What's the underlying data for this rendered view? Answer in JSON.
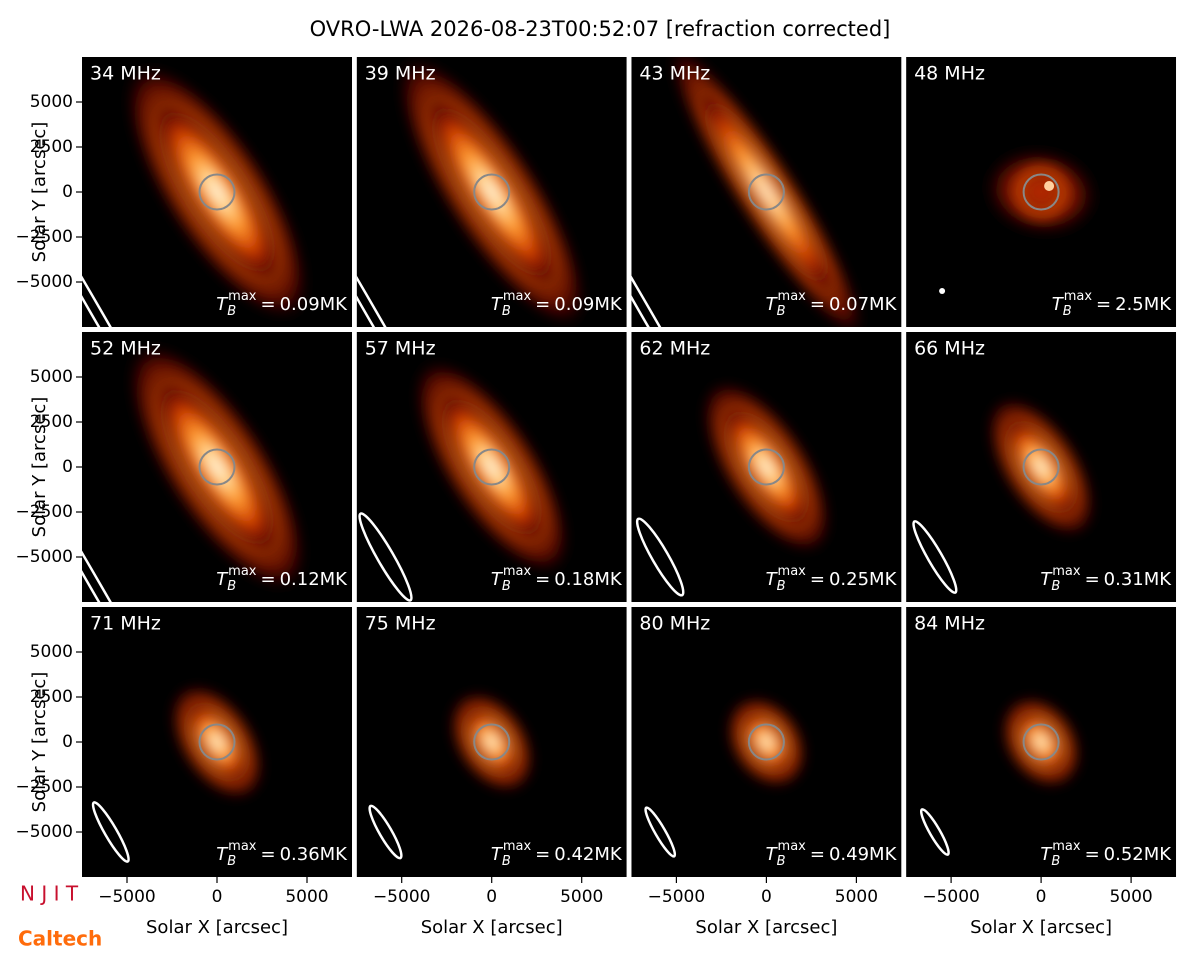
{
  "chart_data": {
    "type": "image-grid",
    "title": "OVRO-LWA 2026-08-23T00:52:07 [refraction corrected]",
    "x_label": "Solar X [arcsec]",
    "y_label": "Solar Y [arcsec]",
    "xlim": [
      -7500,
      7500
    ],
    "ylim": [
      -7500,
      7500
    ],
    "xticks": [
      {
        "value": -5000,
        "label": "−5000"
      },
      0,
      5000
    ],
    "yticks": [
      {
        "value": -5000,
        "label": "−5000"
      },
      {
        "value": -2500,
        "label": "−2500"
      },
      0,
      2500,
      5000
    ],
    "tb_symbol": "T",
    "tb_sub": "B",
    "tb_sup": "max",
    "tb_equals": "=",
    "panels": [
      {
        "label": "34 MHz",
        "tb_max": 0.09,
        "tb_max_label": "0.09MK"
      },
      {
        "label": "39 MHz",
        "tb_max": 0.09,
        "tb_max_label": "0.09MK"
      },
      {
        "label": "43 MHz",
        "tb_max": 0.07,
        "tb_max_label": "0.07MK"
      },
      {
        "label": "48 MHz",
        "tb_max": 2.5,
        "tb_max_label": "2.5MK"
      },
      {
        "label": "52 MHz",
        "tb_max": 0.12,
        "tb_max_label": "0.12MK"
      },
      {
        "label": "57 MHz",
        "tb_max": 0.18,
        "tb_max_label": "0.18MK"
      },
      {
        "label": "62 MHz",
        "tb_max": 0.25,
        "tb_max_label": "0.25MK"
      },
      {
        "label": "66 MHz",
        "tb_max": 0.31,
        "tb_max_label": "0.31MK"
      },
      {
        "label": "71 MHz",
        "tb_max": 0.36,
        "tb_max_label": "0.36MK"
      },
      {
        "label": "75 MHz",
        "tb_max": 0.42,
        "tb_max_label": "0.42MK"
      },
      {
        "label": "80 MHz",
        "tb_max": 0.49,
        "tb_max_label": "0.49MK"
      },
      {
        "label": "84 MHz",
        "tb_max": 0.52,
        "tb_max_label": "0.52MK"
      }
    ],
    "logos": [
      "N J I T",
      "Caltech"
    ]
  }
}
